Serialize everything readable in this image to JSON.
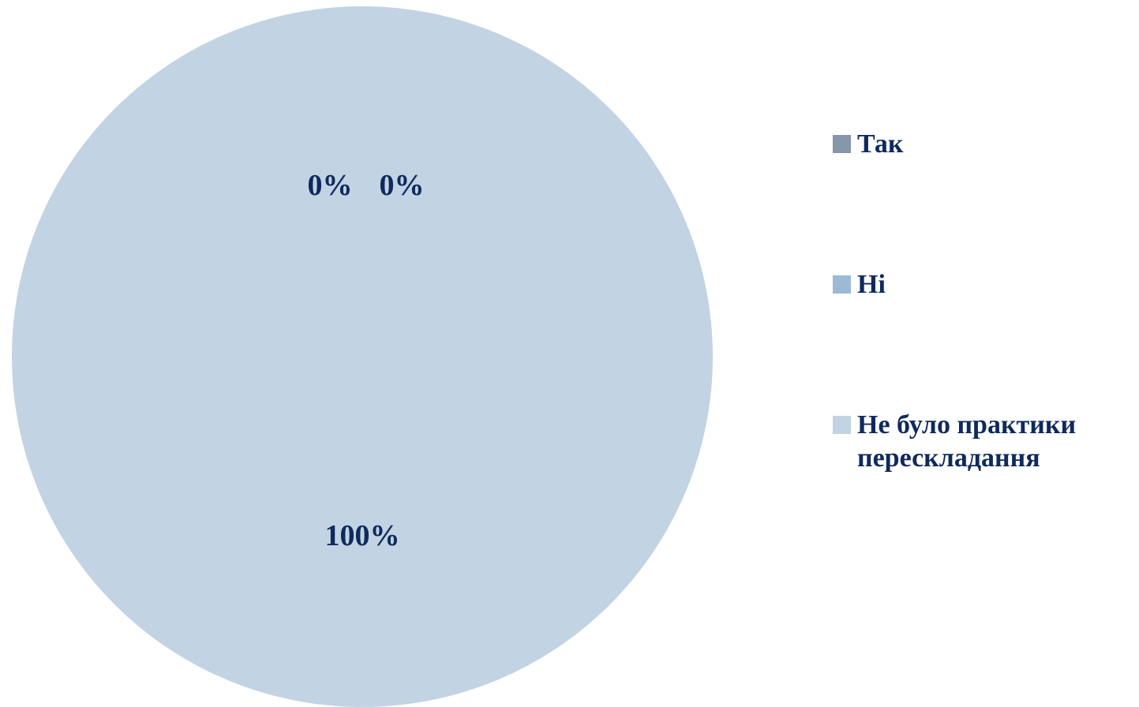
{
  "chart_data": {
    "type": "pie",
    "categories": [
      "Так",
      "Ні",
      "Не було практики перескладання"
    ],
    "values": [
      0,
      0,
      100
    ],
    "data_labels": [
      "0%",
      "0%",
      "100%"
    ],
    "colors": [
      "#8497ab",
      "#9cb9d6",
      "#c2d3e3"
    ],
    "legend_position": "right",
    "label_color": "#0f2a5c"
  }
}
